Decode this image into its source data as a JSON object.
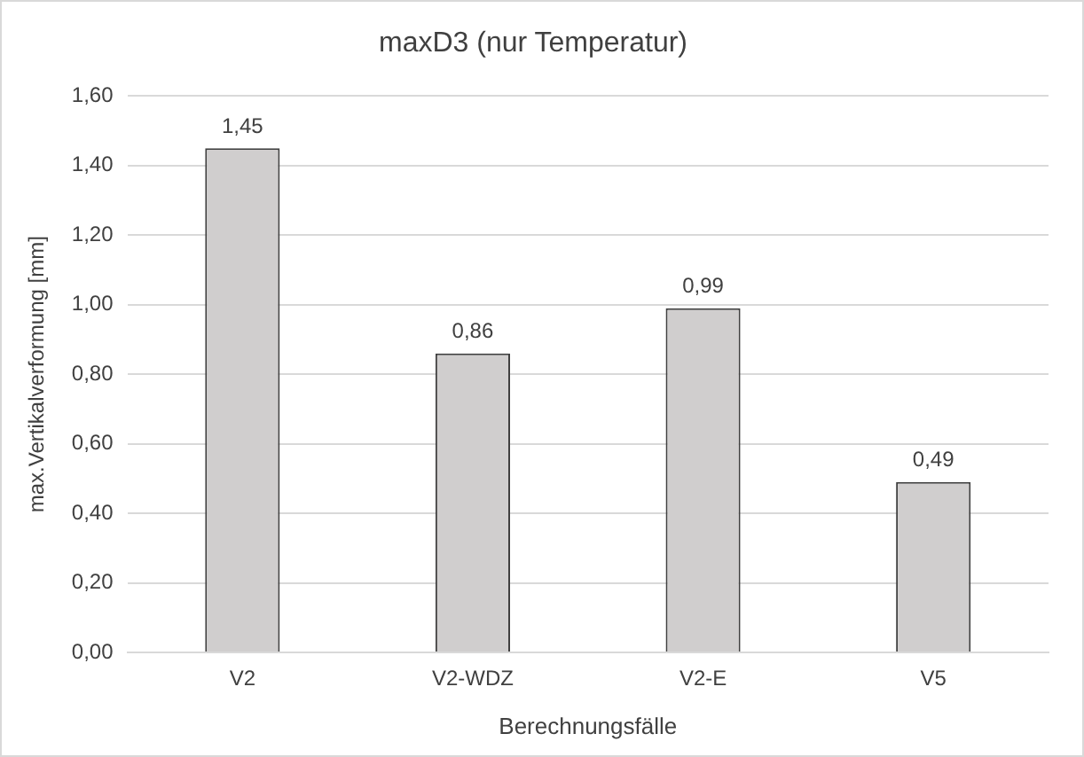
{
  "chart_data": {
    "type": "bar",
    "title": "maxD3 (nur Temperatur)",
    "xlabel": "Berechnungsfälle",
    "ylabel": "max.Vertikalverformung [mm]",
    "categories": [
      "V2",
      "V2-WDZ",
      "V2-E",
      "V5"
    ],
    "values": [
      1.45,
      0.86,
      0.99,
      0.49
    ],
    "value_labels": [
      "1,45",
      "0,86",
      "0,99",
      "0,49"
    ],
    "color": "#d0cece",
    "ylim": [
      0,
      1.6
    ],
    "yticks": [
      {
        "value": 0,
        "label": "0,00"
      },
      {
        "value": 0.2,
        "label": "0,20"
      },
      {
        "value": 0.4,
        "label": "0,40"
      },
      {
        "value": 0.6,
        "label": "0,60"
      },
      {
        "value": 0.8,
        "label": "0,80"
      },
      {
        "value": 1.0,
        "label": "1,00"
      },
      {
        "value": 1.2,
        "label": "1,20"
      },
      {
        "value": 1.4,
        "label": "1,40"
      },
      {
        "value": 1.6,
        "label": "1,60"
      }
    ],
    "grid": "y",
    "legend": false
  }
}
